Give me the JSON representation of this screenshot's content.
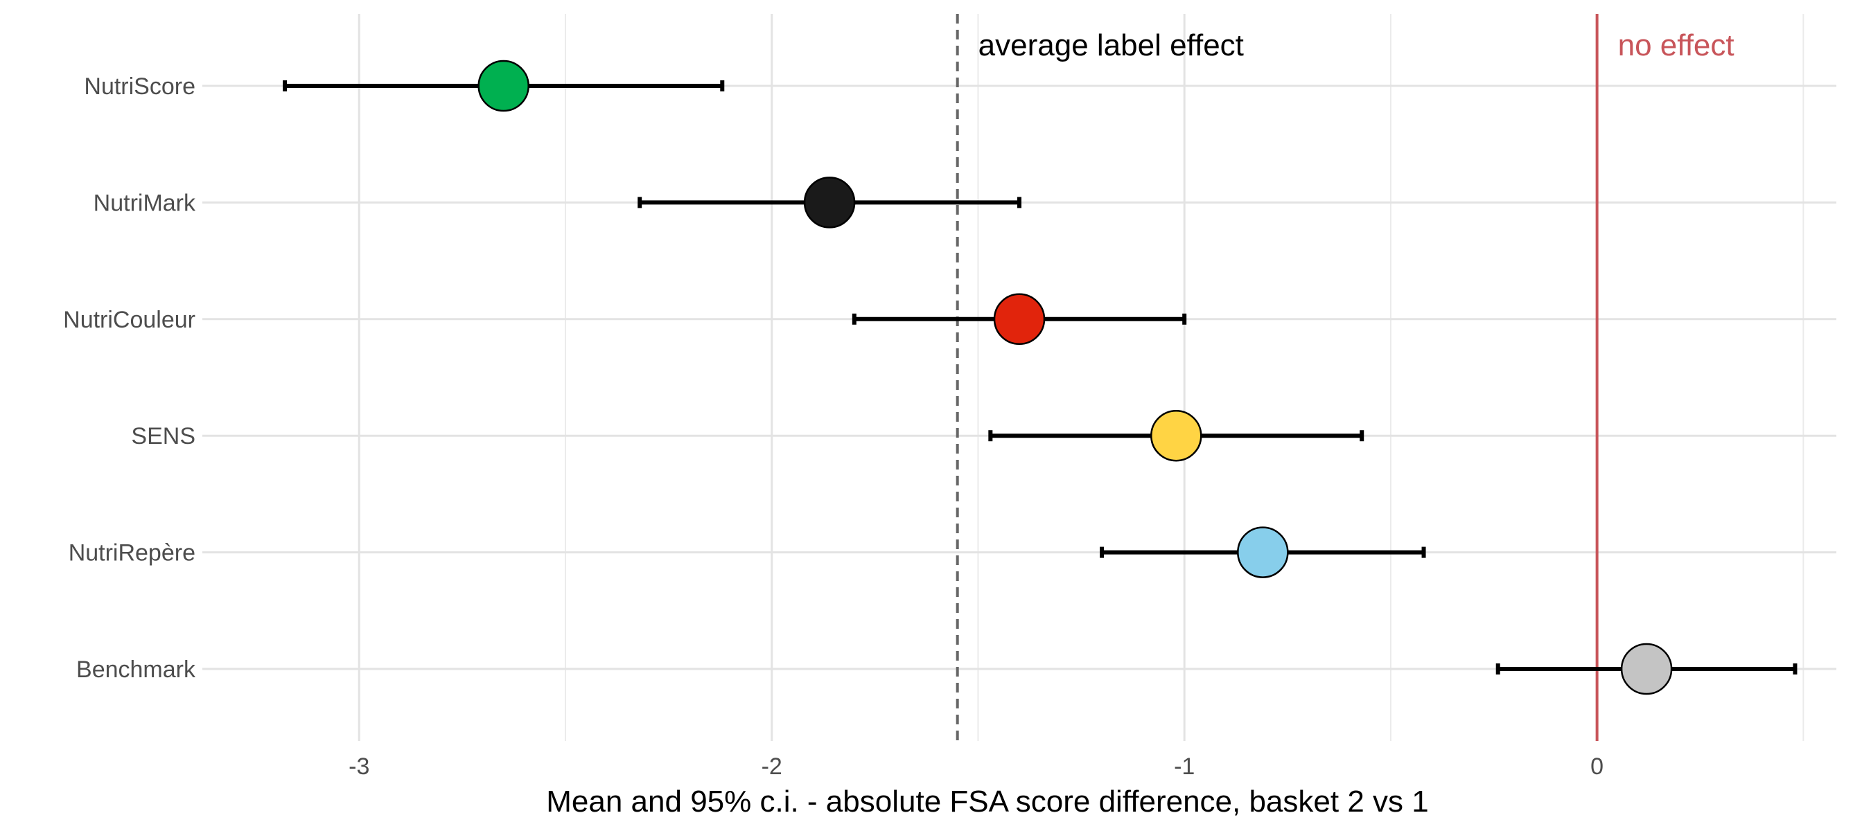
{
  "chart_data": {
    "type": "scatter",
    "title": "",
    "xlabel": "Mean and 95% c.i. - absolute FSA score difference, basket 2 vs 1",
    "ylabel": "",
    "xlim": [
      -3.38,
      0.58
    ],
    "x_ticks": [
      -3,
      -2,
      -1,
      0
    ],
    "grid": true,
    "legend": "none",
    "categories": [
      "NutriScore",
      "NutriMark",
      "NutriCouleur",
      "SENS",
      "NutriRepère",
      "Benchmark"
    ],
    "series": [
      {
        "points": [
          {
            "label": "NutriScore",
            "mean": -2.65,
            "ci_low": -3.18,
            "ci_high": -2.12,
            "color": "#00b050"
          },
          {
            "label": "NutriMark",
            "mean": -1.86,
            "ci_low": -2.32,
            "ci_high": -1.4,
            "color": "#1a1a1a"
          },
          {
            "label": "NutriCouleur",
            "mean": -1.4,
            "ci_low": -1.8,
            "ci_high": -1.0,
            "color": "#e1240c"
          },
          {
            "label": "SENS",
            "mean": -1.02,
            "ci_low": -1.47,
            "ci_high": -0.57,
            "color": "#ffd444"
          },
          {
            "label": "NutriRepère",
            "mean": -0.81,
            "ci_low": -1.2,
            "ci_high": -0.42,
            "color": "#87ceeb"
          },
          {
            "label": "Benchmark",
            "mean": 0.12,
            "ci_low": -0.24,
            "ci_high": 0.48,
            "color": "#c4c4c4"
          }
        ]
      }
    ],
    "reference_lines": [
      {
        "x": -1.55,
        "label": "average label effect",
        "style": "dashed",
        "color": "#666666",
        "text_color": "#000000"
      },
      {
        "x": 0,
        "label": "no effect",
        "style": "solid",
        "color": "#c8555a",
        "text_color": "#c8555a"
      }
    ]
  }
}
